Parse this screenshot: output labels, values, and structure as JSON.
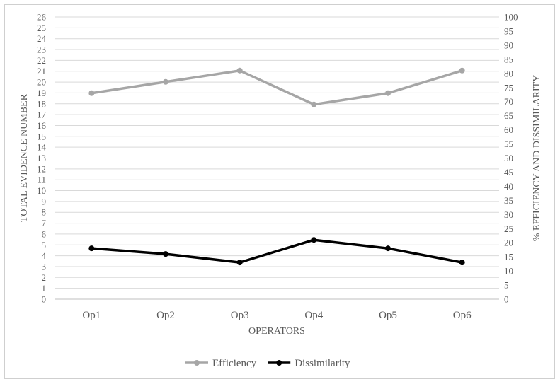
{
  "chart_data": {
    "type": "line",
    "categories": [
      "Op1",
      "Op2",
      "Op3",
      "Op4",
      "Op5",
      "Op6"
    ],
    "xlabel": "OPERATORS",
    "ylabel": "TOTAL EVIDENCE NUMBER",
    "ylabel_right": "% EFFICIENCY AND DISSIMILARITY",
    "ylim": [
      0,
      26
    ],
    "ylim_right": [
      0,
      100
    ],
    "y_ticks": [
      0,
      1,
      2,
      3,
      4,
      5,
      6,
      7,
      8,
      9,
      10,
      11,
      12,
      13,
      14,
      15,
      16,
      17,
      18,
      19,
      20,
      21,
      22,
      23,
      24,
      25,
      26
    ],
    "y_ticks_right": [
      0,
      5,
      10,
      15,
      20,
      25,
      30,
      35,
      40,
      45,
      50,
      55,
      60,
      65,
      70,
      75,
      80,
      85,
      90,
      95,
      100
    ],
    "grid": true,
    "legend_position": "bottom",
    "series": [
      {
        "name": "Efficiency",
        "axis": "right",
        "color": "#a6a6a6",
        "values": [
          73,
          77,
          81,
          69,
          73,
          81
        ]
      },
      {
        "name": "Dissimilarity",
        "axis": "right",
        "color": "#000000",
        "values": [
          18,
          16,
          13,
          21,
          18,
          13
        ]
      }
    ]
  }
}
